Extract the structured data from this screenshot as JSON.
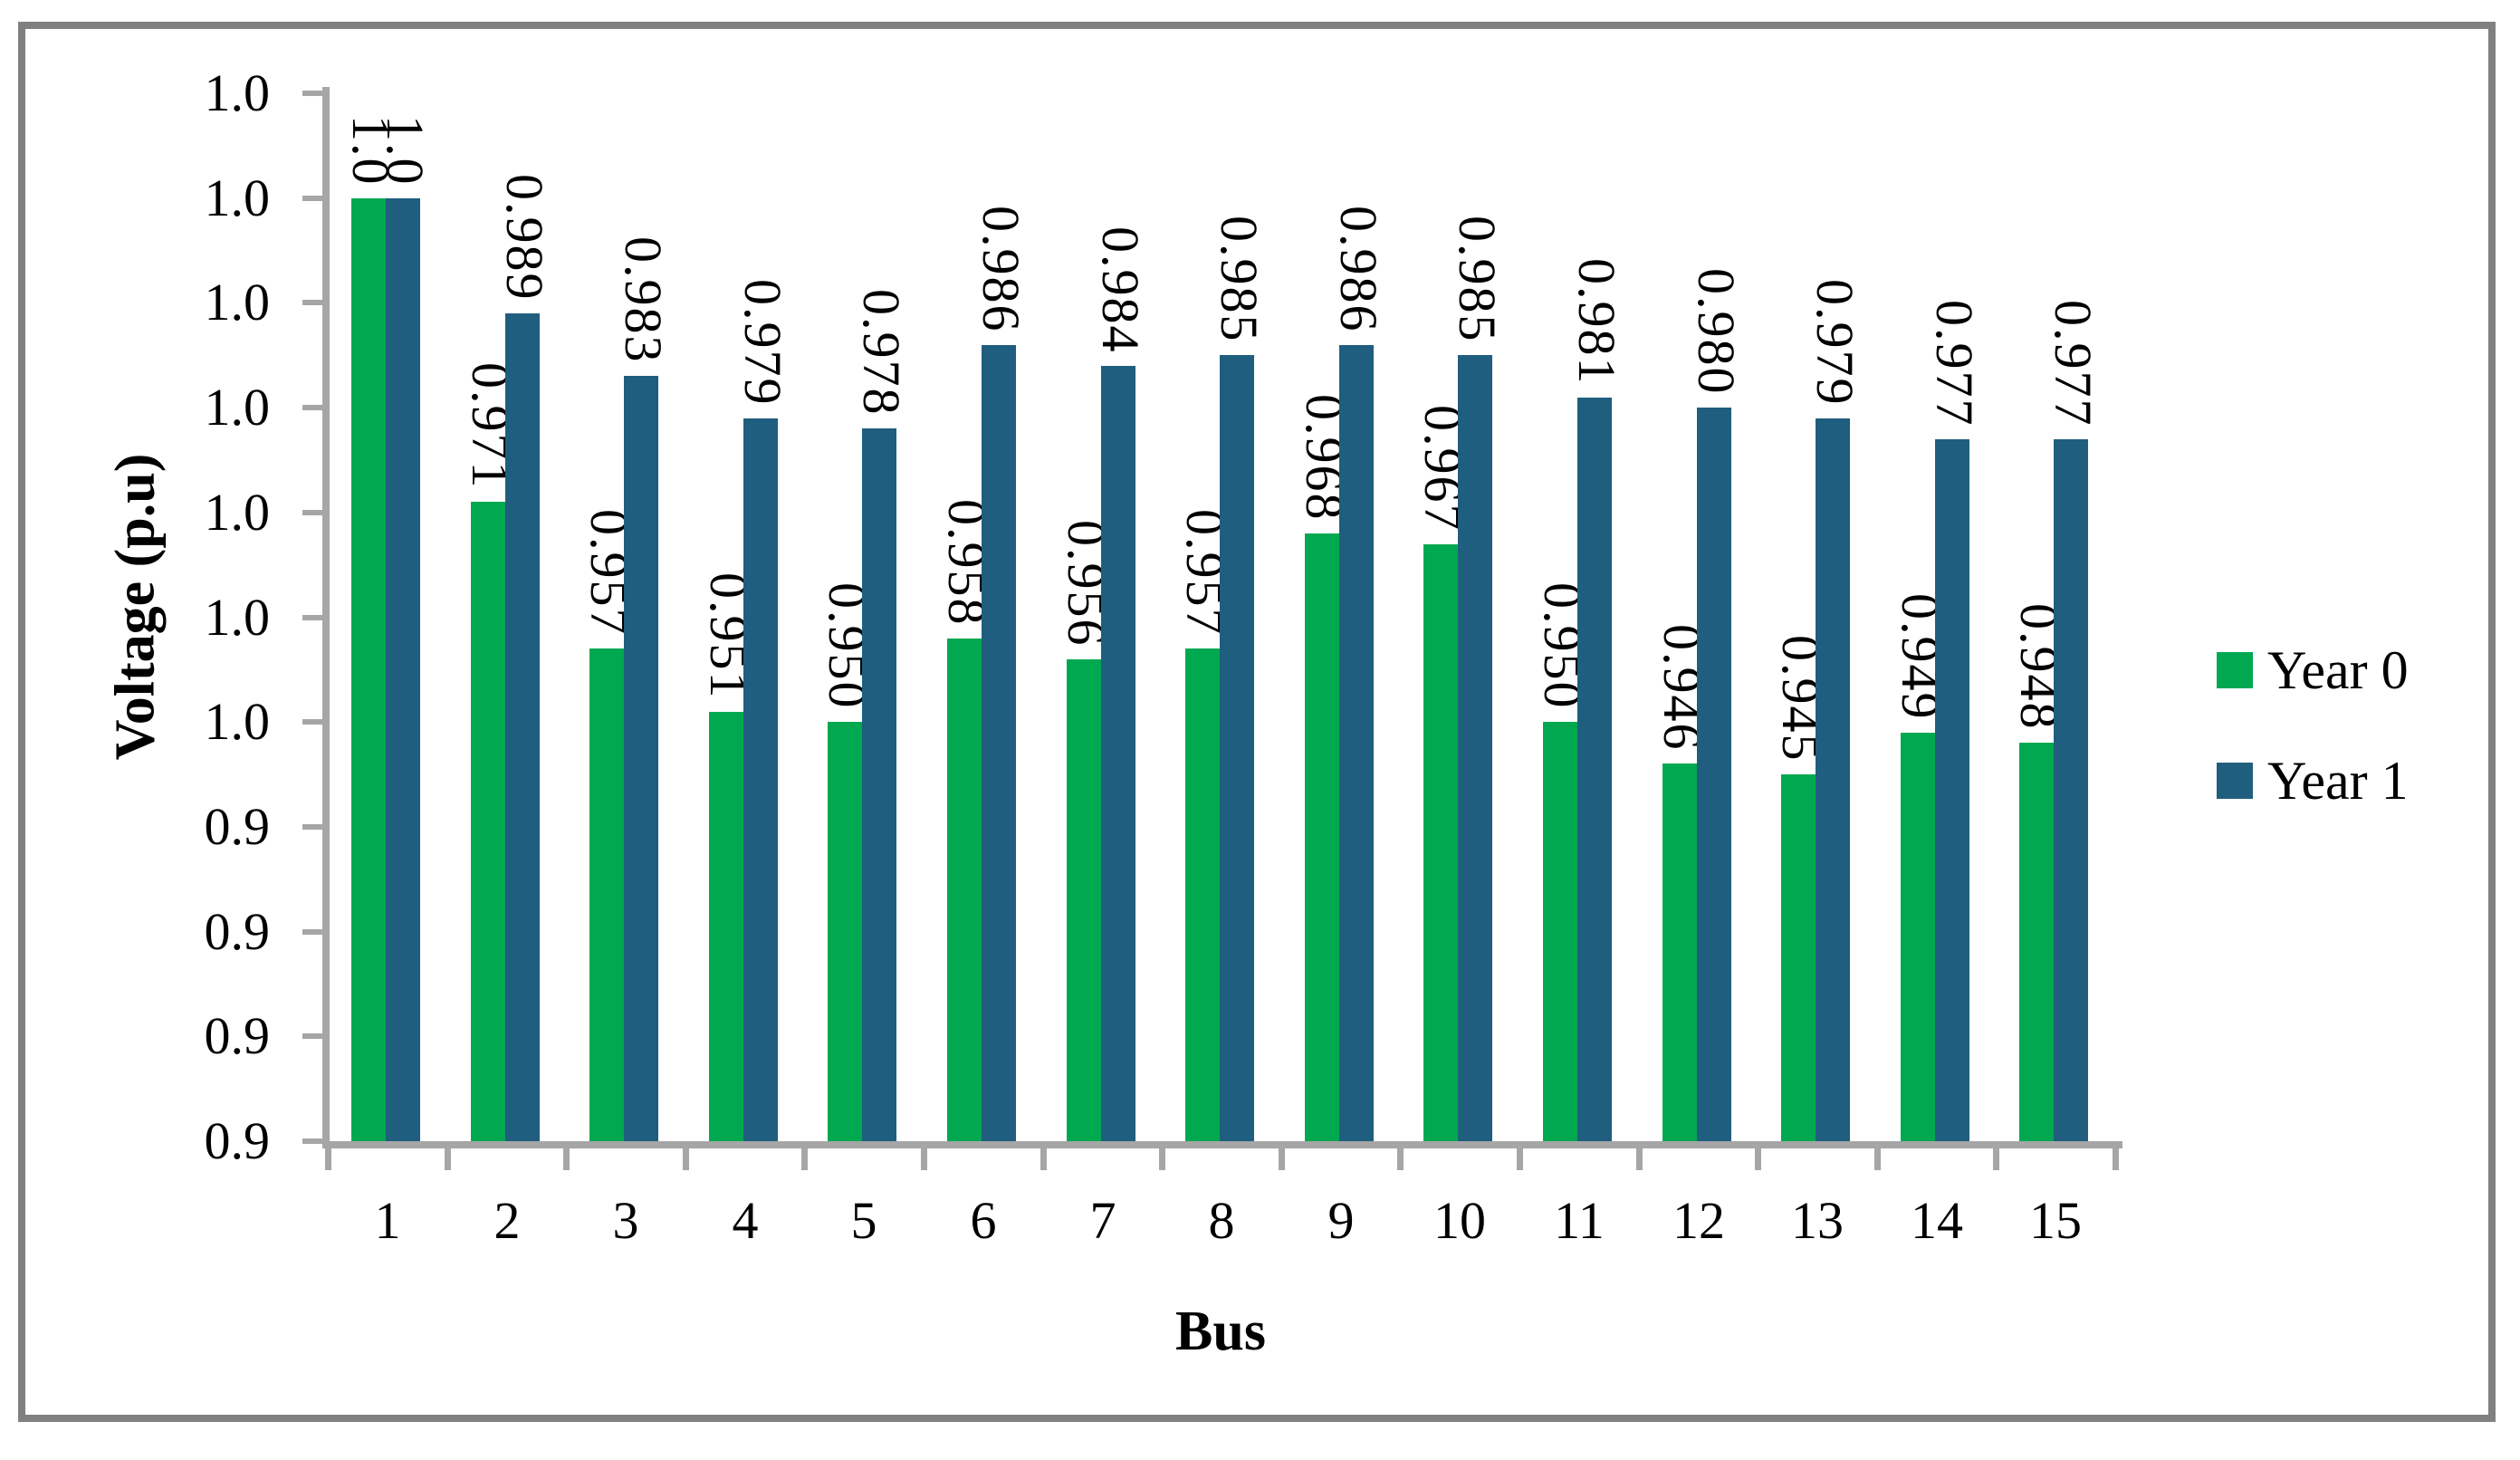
{
  "chart_data": {
    "type": "bar",
    "title": "",
    "xlabel": "Bus",
    "ylabel": "Voltage (p.u)",
    "categories": [
      "1",
      "2",
      "3",
      "4",
      "5",
      "6",
      "7",
      "8",
      "9",
      "10",
      "11",
      "12",
      "13",
      "14",
      "15"
    ],
    "series": [
      {
        "name": "Year 0",
        "color": "#00A850",
        "values": [
          1.0,
          0.971,
          0.957,
          0.951,
          0.95,
          0.958,
          0.956,
          0.957,
          0.968,
          0.967,
          0.95,
          0.946,
          0.945,
          0.949,
          0.948
        ],
        "labels": [
          "1.0",
          "0.971",
          "0.957",
          "0.951",
          "0.950",
          "0.958",
          "0.956",
          "0.957",
          "0.968",
          "0.967",
          "0.950",
          "0.946",
          "0.945",
          "0.949",
          "0.948"
        ]
      },
      {
        "name": "Year 1",
        "color": "#1F5E7E",
        "values": [
          1.0,
          0.989,
          0.983,
          0.979,
          0.978,
          0.986,
          0.984,
          0.985,
          0.986,
          0.985,
          0.981,
          0.98,
          0.979,
          0.977,
          0.977
        ],
        "labels": [
          "1.0",
          "0.989",
          "0.983",
          "0.979",
          "0.978",
          "0.986",
          "0.984",
          "0.985",
          "0.986",
          "0.985",
          "0.981",
          "0.980",
          "0.979",
          "0.977",
          "0.977"
        ]
      }
    ],
    "y_axis": {
      "min": 0.91,
      "max": 1.01,
      "step": 0.01,
      "tick_labels_bottom_to_top": [
        "0.9",
        "0.9",
        "0.9",
        "0.9",
        "1.0",
        "1.0",
        "1.0",
        "1.0",
        "1.0",
        "1.0",
        "1.0"
      ]
    },
    "x_axis": {
      "tick_count": 16
    },
    "legend": {
      "position": "right"
    },
    "grid": "off",
    "data_label_orientation": "vertical",
    "colors": {
      "axis": "#A6A6A6",
      "frame_border": "#808080",
      "text": "#000000",
      "background": "#FFFFFF"
    }
  }
}
